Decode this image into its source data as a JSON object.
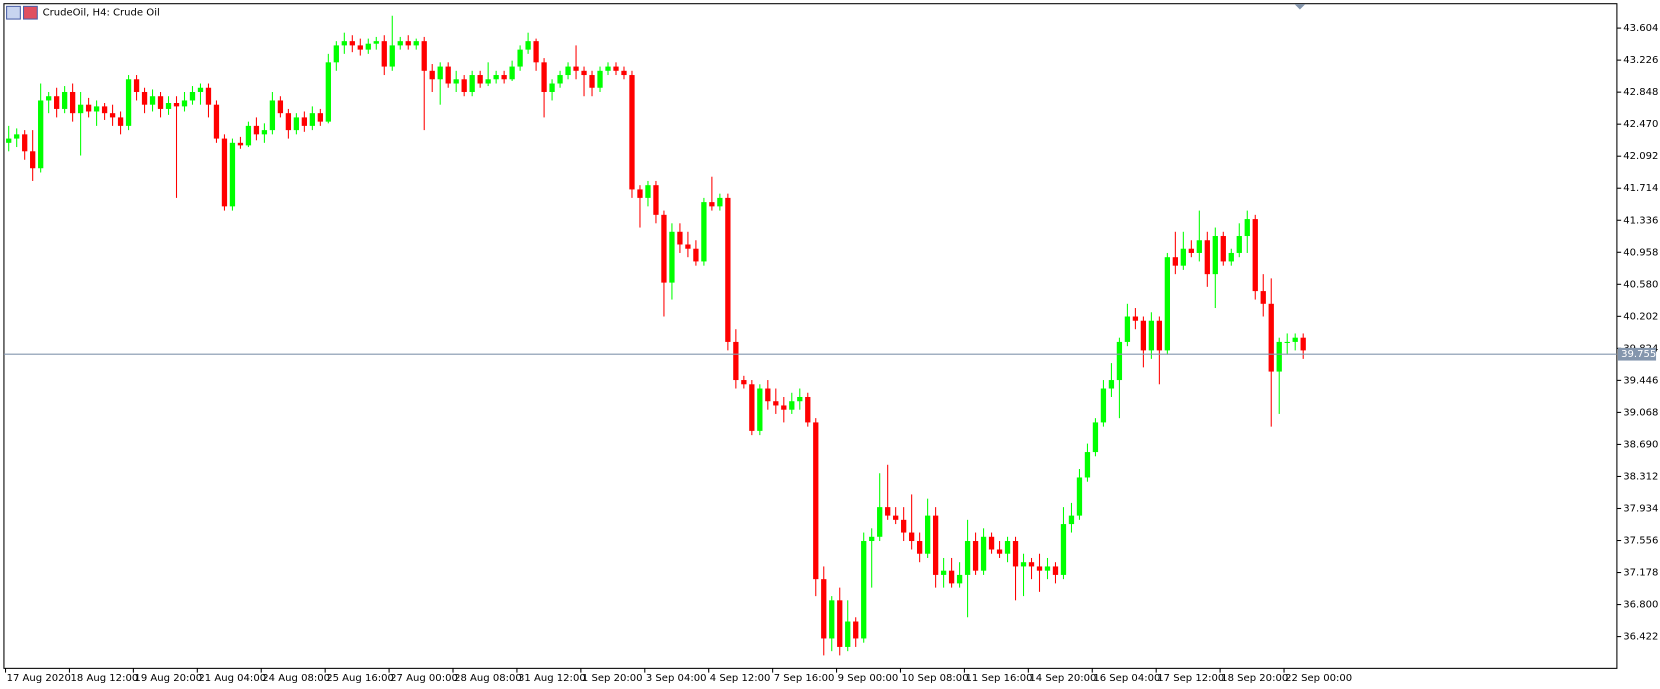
{
  "chart_data": {
    "type": "candlestick",
    "title": "CrudeOil, H4:  Crude Oil",
    "up_color": "#00ff00",
    "down_color": "#ff0000",
    "ylim": [
      36.047,
      43.892
    ],
    "yticks": [
      43.604,
      43.226,
      42.848,
      {
        "value": 42.47,
        "label": "42.470"
      },
      42.092,
      41.714,
      41.336,
      40.958,
      {
        "value": 40.58,
        "label": "40.580"
      },
      40.202,
      39.824,
      39.446,
      39.068,
      {
        "value": 38.69,
        "label": "38.690"
      },
      38.312,
      37.934,
      37.556,
      37.178,
      {
        "value": 36.8,
        "label": "36.800"
      },
      36.422
    ],
    "current_price": {
      "value": 39.755,
      "label": "39.755"
    },
    "price_line_color": "#8496ad",
    "categories": [
      "17 Aug 2020",
      null,
      null,
      null,
      null,
      null,
      null,
      null,
      "18 Aug 12:00",
      null,
      null,
      null,
      null,
      null,
      null,
      null,
      "19 Aug 20:00",
      null,
      null,
      null,
      null,
      null,
      null,
      null,
      "21 Aug 04:00",
      null,
      null,
      null,
      null,
      null,
      null,
      null,
      "24 Aug 08:00",
      null,
      null,
      null,
      null,
      null,
      null,
      null,
      "25 Aug 16:00",
      null,
      null,
      null,
      null,
      null,
      null,
      null,
      "27 Aug 00:00",
      null,
      null,
      null,
      null,
      null,
      null,
      null,
      "28 Aug 08:00",
      null,
      null,
      null,
      null,
      null,
      null,
      null,
      "31 Aug 12:00",
      null,
      null,
      null,
      null,
      null,
      null,
      null,
      "1 Sep 20:00",
      null,
      null,
      null,
      null,
      null,
      null,
      null,
      "3 Sep 04:00",
      null,
      null,
      null,
      null,
      null,
      null,
      null,
      "4 Sep 12:00",
      null,
      null,
      null,
      null,
      null,
      null,
      null,
      "7 Sep 16:00",
      null,
      null,
      null,
      null,
      null,
      null,
      null,
      "9 Sep 00:00",
      null,
      null,
      null,
      null,
      null,
      null,
      null,
      "10 Sep 08:00",
      null,
      null,
      null,
      null,
      null,
      null,
      null,
      "11 Sep 16:00",
      null,
      null,
      null,
      null,
      null,
      null,
      null,
      "14 Sep 20:00",
      null,
      null,
      null,
      null,
      null,
      null,
      null,
      "16 Sep 04:00",
      null,
      null,
      null,
      null,
      null,
      null,
      null,
      "17 Sep 12:00",
      null,
      null,
      null,
      null,
      null,
      null,
      null,
      "18 Sep 20:00",
      null,
      null,
      null,
      null,
      null,
      null,
      null,
      "22 Sep 00:00",
      null,
      null
    ],
    "ohlc": [
      [
        42.25,
        42.45,
        42.15,
        42.3
      ],
      [
        42.3,
        42.42,
        42.2,
        42.35
      ],
      [
        42.35,
        42.4,
        42.05,
        42.15
      ],
      [
        42.15,
        42.4,
        41.8,
        41.95
      ],
      [
        41.95,
        42.95,
        41.9,
        42.75
      ],
      [
        42.75,
        42.85,
        42.6,
        42.8
      ],
      [
        42.8,
        42.9,
        42.55,
        42.65
      ],
      [
        42.65,
        42.92,
        42.6,
        42.85
      ],
      [
        42.85,
        42.95,
        42.5,
        42.6
      ],
      [
        42.6,
        42.85,
        42.1,
        42.7
      ],
      [
        42.7,
        42.78,
        42.55,
        42.62
      ],
      [
        42.62,
        42.75,
        42.45,
        42.68
      ],
      [
        42.68,
        42.72,
        42.52,
        42.6
      ],
      [
        42.6,
        42.7,
        42.45,
        42.55
      ],
      [
        42.55,
        42.62,
        42.35,
        42.45
      ],
      [
        42.45,
        43.05,
        42.4,
        43.0
      ],
      [
        43.0,
        43.05,
        42.75,
        42.85
      ],
      [
        42.85,
        42.9,
        42.6,
        42.7
      ],
      [
        42.7,
        42.88,
        42.62,
        42.8
      ],
      [
        42.8,
        42.85,
        42.55,
        42.65
      ],
      [
        42.65,
        42.8,
        42.58,
        42.72
      ],
      [
        42.72,
        42.8,
        41.6,
        42.68
      ],
      [
        42.68,
        42.85,
        42.62,
        42.75
      ],
      [
        42.75,
        42.92,
        42.7,
        42.85
      ],
      [
        42.85,
        42.95,
        42.7,
        42.9
      ],
      [
        42.9,
        42.95,
        42.55,
        42.7
      ],
      [
        42.7,
        42.75,
        42.25,
        42.3
      ],
      [
        42.3,
        42.35,
        41.45,
        41.5
      ],
      [
        41.5,
        42.3,
        41.45,
        42.25
      ],
      [
        42.25,
        42.32,
        42.18,
        42.22
      ],
      [
        42.22,
        42.5,
        42.2,
        42.45
      ],
      [
        42.45,
        42.55,
        42.28,
        42.35
      ],
      [
        42.35,
        42.48,
        42.25,
        42.4
      ],
      [
        42.4,
        42.85,
        42.35,
        42.75
      ],
      [
        42.75,
        42.8,
        42.55,
        42.6
      ],
      [
        42.6,
        42.65,
        42.3,
        42.4
      ],
      [
        42.4,
        42.6,
        42.35,
        42.55
      ],
      [
        42.55,
        42.62,
        42.38,
        42.45
      ],
      [
        42.45,
        42.68,
        42.4,
        42.6
      ],
      [
        42.6,
        42.65,
        42.45,
        42.5
      ],
      [
        42.5,
        43.3,
        42.48,
        43.2
      ],
      [
        43.2,
        43.45,
        43.1,
        43.4
      ],
      [
        43.4,
        43.55,
        43.3,
        43.45
      ],
      [
        43.45,
        43.52,
        43.32,
        43.4
      ],
      [
        43.4,
        43.48,
        43.28,
        43.35
      ],
      [
        43.35,
        43.48,
        43.3,
        43.42
      ],
      [
        43.42,
        43.5,
        43.35,
        43.45
      ],
      [
        43.45,
        43.52,
        43.05,
        43.15
      ],
      [
        43.15,
        43.75,
        43.1,
        43.4
      ],
      [
        43.4,
        43.5,
        43.35,
        43.45
      ],
      [
        43.45,
        43.52,
        43.35,
        43.4
      ],
      [
        43.4,
        43.48,
        43.35,
        43.45
      ],
      [
        43.45,
        43.5,
        42.4,
        43.1
      ],
      [
        43.1,
        43.18,
        42.85,
        43.0
      ],
      [
        43.0,
        43.2,
        42.7,
        43.15
      ],
      [
        43.15,
        43.2,
        42.9,
        42.95
      ],
      [
        42.95,
        43.1,
        42.85,
        43.0
      ],
      [
        43.0,
        43.05,
        42.8,
        42.85
      ],
      [
        42.85,
        43.1,
        42.8,
        43.05
      ],
      [
        43.05,
        43.1,
        42.9,
        42.95
      ],
      [
        42.95,
        43.2,
        42.92,
        43.0
      ],
      [
        43.0,
        43.1,
        42.95,
        43.05
      ],
      [
        43.05,
        43.1,
        42.95,
        43.0
      ],
      [
        43.0,
        43.22,
        42.98,
        43.15
      ],
      [
        43.15,
        43.4,
        43.1,
        43.35
      ],
      [
        43.35,
        43.55,
        43.3,
        43.45
      ],
      [
        43.45,
        43.48,
        43.1,
        43.2
      ],
      [
        43.2,
        43.25,
        42.55,
        42.85
      ],
      [
        42.85,
        43.0,
        42.75,
        42.95
      ],
      [
        42.95,
        43.1,
        42.9,
        43.05
      ],
      [
        43.05,
        43.2,
        43.0,
        43.15
      ],
      [
        43.15,
        43.4,
        43.0,
        43.1
      ],
      [
        43.1,
        43.15,
        42.8,
        43.05
      ],
      [
        43.05,
        43.1,
        42.8,
        42.9
      ],
      [
        42.9,
        43.15,
        42.85,
        43.1
      ],
      [
        43.1,
        43.2,
        43.05,
        43.15
      ],
      [
        43.15,
        43.2,
        43.05,
        43.1
      ],
      [
        43.1,
        43.15,
        43.0,
        43.05
      ],
      [
        43.05,
        43.1,
        41.6,
        41.7
      ],
      [
        41.7,
        41.75,
        41.25,
        41.6
      ],
      [
        41.6,
        41.8,
        41.5,
        41.75
      ],
      [
        41.75,
        41.8,
        41.3,
        41.4
      ],
      [
        41.4,
        41.45,
        40.2,
        40.6
      ],
      [
        40.6,
        41.3,
        40.4,
        41.2
      ],
      [
        41.2,
        41.3,
        40.95,
        41.05
      ],
      [
        41.05,
        41.2,
        40.9,
        41.0
      ],
      [
        41.0,
        41.1,
        40.8,
        40.85
      ],
      [
        40.85,
        41.6,
        40.8,
        41.55
      ],
      [
        41.55,
        41.85,
        41.45,
        41.5
      ],
      [
        41.5,
        41.65,
        41.45,
        41.6
      ],
      [
        41.6,
        41.65,
        39.8,
        39.9
      ],
      [
        39.9,
        40.05,
        39.35,
        39.45
      ],
      [
        39.45,
        39.5,
        39.35,
        39.4
      ],
      [
        39.4,
        39.45,
        38.8,
        38.85
      ],
      [
        38.85,
        39.4,
        38.8,
        39.35
      ],
      [
        39.35,
        39.45,
        39.1,
        39.2
      ],
      [
        39.2,
        39.35,
        39.05,
        39.15
      ],
      [
        39.15,
        39.25,
        38.95,
        39.1
      ],
      [
        39.1,
        39.3,
        39.05,
        39.2
      ],
      [
        39.2,
        39.35,
        39.1,
        39.25
      ],
      [
        39.25,
        39.3,
        38.9,
        38.95
      ],
      [
        38.95,
        39.0,
        36.9,
        37.1
      ],
      [
        37.1,
        37.25,
        36.2,
        36.4
      ],
      [
        36.4,
        36.9,
        36.25,
        36.85
      ],
      [
        36.85,
        37.0,
        36.2,
        36.3
      ],
      [
        36.3,
        36.85,
        36.25,
        36.6
      ],
      [
        36.6,
        36.65,
        36.3,
        36.4
      ],
      [
        36.4,
        37.65,
        36.35,
        37.55
      ],
      [
        37.55,
        37.7,
        37.0,
        37.6
      ],
      [
        37.6,
        38.35,
        37.55,
        37.95
      ],
      [
        37.95,
        38.45,
        37.8,
        37.85
      ],
      [
        37.85,
        37.95,
        37.75,
        37.8
      ],
      [
        37.8,
        37.95,
        37.55,
        37.65
      ],
      [
        37.65,
        38.1,
        37.45,
        37.55
      ],
      [
        37.55,
        37.65,
        37.3,
        37.4
      ],
      [
        37.4,
        38.05,
        37.35,
        37.85
      ],
      [
        37.85,
        37.95,
        37.0,
        37.15
      ],
      [
        37.15,
        37.35,
        37.0,
        37.2
      ],
      [
        37.2,
        37.35,
        37.0,
        37.05
      ],
      [
        37.05,
        37.3,
        37.0,
        37.15
      ],
      [
        37.15,
        37.8,
        36.65,
        37.55
      ],
      [
        37.55,
        37.65,
        37.15,
        37.2
      ],
      [
        37.2,
        37.7,
        37.15,
        37.6
      ],
      [
        37.6,
        37.65,
        37.4,
        37.45
      ],
      [
        37.45,
        37.55,
        37.35,
        37.4
      ],
      [
        37.4,
        37.6,
        37.3,
        37.55
      ],
      [
        37.55,
        37.6,
        36.85,
        37.25
      ],
      [
        37.25,
        37.4,
        36.9,
        37.3
      ],
      [
        37.3,
        37.35,
        37.1,
        37.25
      ],
      [
        37.25,
        37.4,
        36.95,
        37.2
      ],
      [
        37.2,
        37.35,
        37.1,
        37.25
      ],
      [
        37.25,
        37.3,
        37.05,
        37.15
      ],
      [
        37.15,
        37.95,
        37.1,
        37.75
      ],
      [
        37.75,
        38.0,
        37.65,
        37.85
      ],
      [
        37.85,
        38.4,
        37.8,
        38.3
      ],
      [
        38.3,
        38.7,
        38.25,
        38.6
      ],
      [
        38.6,
        39.0,
        38.55,
        38.95
      ],
      [
        38.95,
        39.45,
        38.9,
        39.35
      ],
      [
        39.35,
        39.65,
        39.25,
        39.45
      ],
      [
        39.45,
        39.95,
        39.0,
        39.9
      ],
      [
        39.9,
        40.35,
        39.85,
        40.2
      ],
      [
        40.2,
        40.3,
        40.05,
        40.15
      ],
      [
        40.15,
        40.2,
        39.6,
        39.8
      ],
      [
        39.8,
        40.25,
        39.7,
        40.15
      ],
      [
        40.15,
        40.2,
        39.4,
        39.8
      ],
      [
        39.8,
        40.95,
        39.75,
        40.9
      ],
      [
        40.9,
        41.2,
        40.7,
        40.8
      ],
      [
        40.8,
        41.2,
        40.75,
        41.0
      ],
      [
        41.0,
        41.1,
        40.9,
        40.95
      ],
      [
        40.95,
        41.45,
        40.85,
        41.1
      ],
      [
        41.1,
        41.2,
        40.55,
        40.7
      ],
      [
        40.7,
        41.25,
        40.3,
        41.15
      ],
      [
        41.15,
        41.2,
        40.8,
        40.85
      ],
      [
        40.85,
        41.0,
        40.8,
        40.95
      ],
      [
        40.95,
        41.3,
        40.9,
        41.15
      ],
      [
        41.15,
        41.45,
        40.95,
        41.35
      ],
      [
        41.35,
        41.4,
        40.4,
        40.5
      ],
      [
        40.5,
        40.7,
        40.2,
        40.35
      ],
      [
        40.35,
        40.65,
        38.9,
        39.55
      ],
      [
        39.55,
        39.95,
        39.05,
        39.9
      ],
      [
        39.9,
        40.0,
        39.75,
        39.9
      ],
      [
        39.9,
        40.0,
        39.8,
        39.95
      ],
      [
        39.95,
        40.0,
        39.7,
        39.8
      ]
    ]
  }
}
